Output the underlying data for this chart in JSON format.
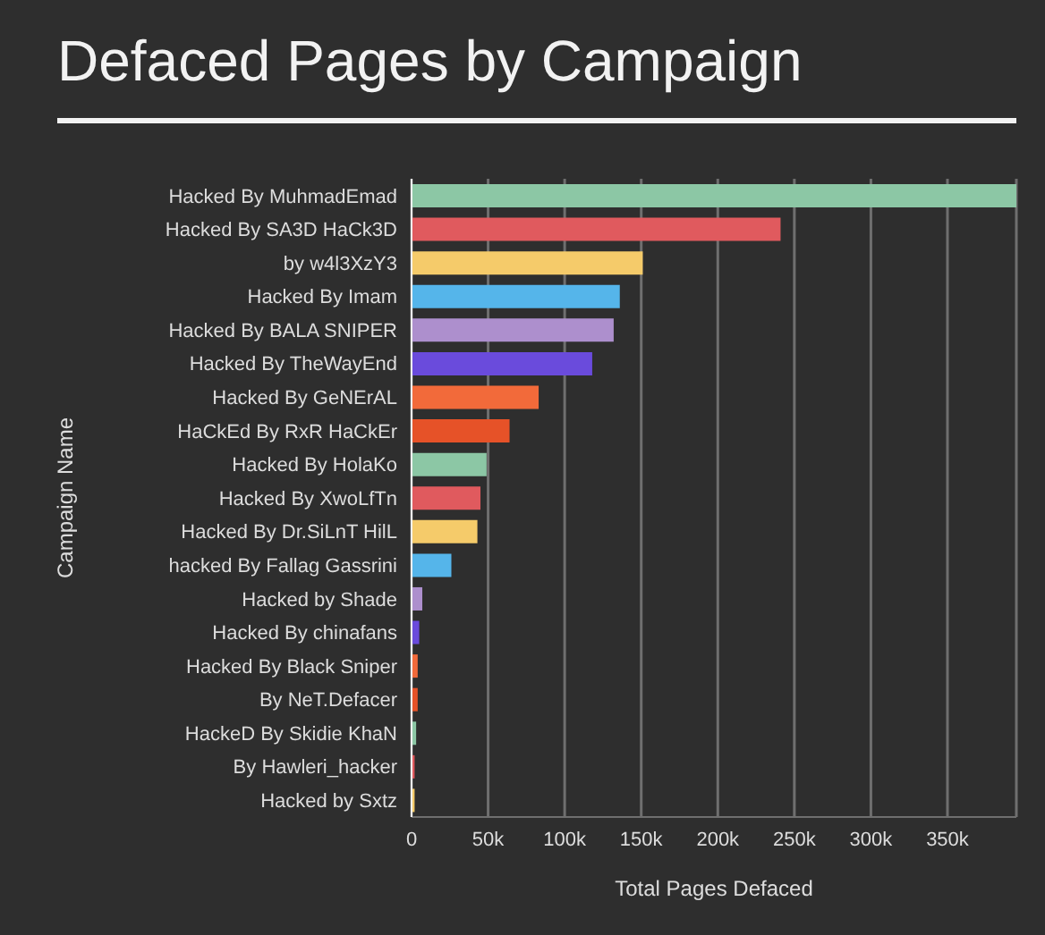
{
  "chart_data": {
    "type": "bar",
    "orientation": "horizontal",
    "title": "Defaced Pages by Campaign",
    "xlabel": "Total Pages Defaced",
    "ylabel": "Campaign Name",
    "categories": [
      "Hacked By MuhmadEmad",
      "Hacked By SA3D HaCk3D",
      "by w4l3XzY3",
      "Hacked By Imam",
      "Hacked By BALA SNIPER",
      "Hacked By TheWayEnd",
      "Hacked By GeNErAL",
      "HaCkEd By RxR HaCkEr",
      "Hacked By HolaKo",
      "Hacked By XwoLfTn",
      "Hacked By Dr.SiLnT HilL",
      "hacked By Fallag Gassrini",
      "Hacked by Shade",
      "Hacked By chinafans",
      "Hacked By Black Sniper",
      "By NeT.Defacer",
      "HackeD By Skidie KhaN",
      "By Hawleri_hacker",
      "Hacked by Sxtz"
    ],
    "values": [
      395000,
      241000,
      151000,
      136000,
      132000,
      118000,
      83000,
      64000,
      49000,
      45000,
      43000,
      26000,
      7000,
      5000,
      4000,
      4000,
      3000,
      2000,
      2000
    ],
    "colors": [
      "#8cc7a5",
      "#e05a5e",
      "#f5cb6a",
      "#55b5ea",
      "#ad8fcd",
      "#6a4bdc",
      "#f26a3a",
      "#e65228",
      "#8cc7a5",
      "#e05a5e",
      "#f5cb6a",
      "#55b5ea",
      "#ad8fcd",
      "#6a4bdc",
      "#f26a3a",
      "#e65228",
      "#8cc7a5",
      "#e05a5e",
      "#f5cb6a"
    ],
    "xlim": [
      0,
      395000
    ],
    "xticks": [
      0,
      {
        "value": 50000,
        "label": "50k"
      },
      {
        "value": 100000,
        "label": "100k"
      },
      {
        "value": 150000,
        "label": "150k"
      },
      {
        "value": 200000,
        "label": "200k"
      },
      {
        "value": 250000,
        "label": "250k"
      },
      {
        "value": 300000,
        "label": "300k"
      },
      {
        "value": 350000,
        "label": "350k"
      }
    ],
    "grid": "x",
    "legend": false
  }
}
